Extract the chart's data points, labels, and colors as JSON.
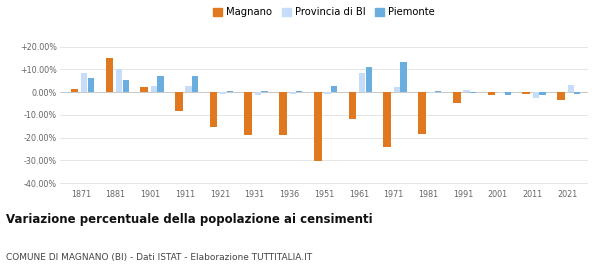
{
  "years": [
    1871,
    1881,
    1901,
    1911,
    1921,
    1931,
    1936,
    1951,
    1961,
    1971,
    1981,
    1991,
    2001,
    2011,
    2021
  ],
  "magnano": [
    1.2,
    15.0,
    2.0,
    -8.5,
    -15.5,
    -19.0,
    -19.0,
    -30.5,
    -12.0,
    -24.0,
    -18.5,
    -5.0,
    -1.2,
    -0.8,
    -3.5
  ],
  "provincia_bi": [
    8.5,
    10.0,
    2.5,
    2.5,
    -1.0,
    -1.5,
    -1.0,
    -1.0,
    8.5,
    2.0,
    -0.5,
    1.0,
    -0.5,
    -2.5,
    3.0
  ],
  "piemonte": [
    6.0,
    5.5,
    7.0,
    7.0,
    0.5,
    0.5,
    0.5,
    2.5,
    11.0,
    13.0,
    0.5,
    -0.5,
    -1.2,
    -1.5,
    -1.0
  ],
  "ylim": [
    -42,
    22
  ],
  "yticks": [
    -40,
    -30,
    -20,
    -10,
    0,
    10,
    20
  ],
  "ytick_labels": [
    "-40.00%",
    "-30.00%",
    "-20.00%",
    "-10.00%",
    "0.00%",
    "+10.00%",
    "+20.00%"
  ],
  "color_magnano": "#e07820",
  "color_provincia": "#c5ddf8",
  "color_piemonte": "#6aaee0",
  "title": "Variazione percentuale della popolazione ai censimenti",
  "subtitle": "COMUNE DI MAGNANO (BI) - Dati ISTAT - Elaborazione TUTTITALIA.IT",
  "background_color": "#ffffff",
  "grid_color": "#e0e0e0"
}
